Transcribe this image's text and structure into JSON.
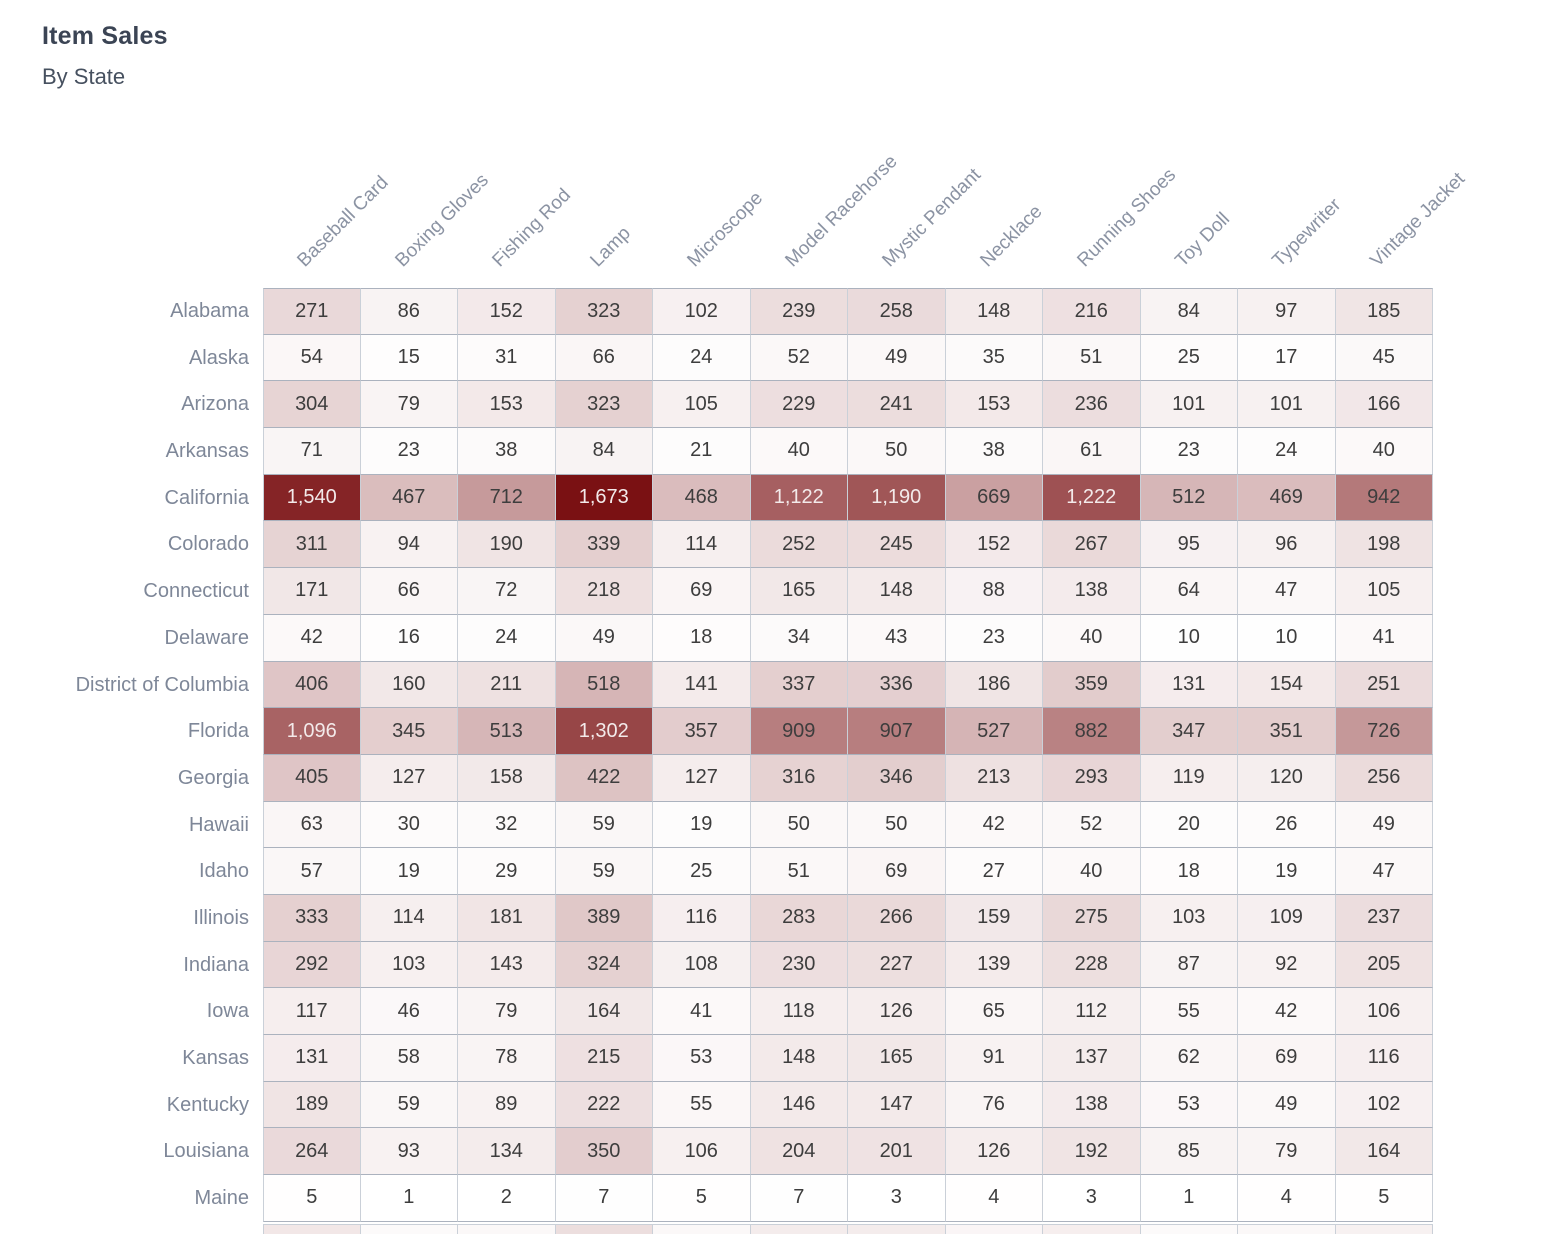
{
  "header": {
    "title": "Item Sales",
    "subtitle": "By State"
  },
  "chart_data": {
    "type": "heatmap",
    "title": "Item Sales",
    "subtitle": "By State",
    "columns": [
      "Baseball Card",
      "Boxing Gloves",
      "Fishing Rod",
      "Lamp",
      "Microscope",
      "Model Racehorse",
      "Mystic Pendant",
      "Necklace",
      "Running Shoes",
      "Toy Doll",
      "Typewriter",
      "Vintage Jacket"
    ],
    "rows": [
      {
        "state": "Alabama",
        "values": [
          271,
          86,
          152,
          323,
          102,
          239,
          258,
          148,
          216,
          84,
          97,
          185
        ]
      },
      {
        "state": "Alaska",
        "values": [
          54,
          15,
          31,
          66,
          24,
          52,
          49,
          35,
          51,
          25,
          17,
          45
        ]
      },
      {
        "state": "Arizona",
        "values": [
          304,
          79,
          153,
          323,
          105,
          229,
          241,
          153,
          236,
          101,
          101,
          166
        ]
      },
      {
        "state": "Arkansas",
        "values": [
          71,
          23,
          38,
          84,
          21,
          40,
          50,
          38,
          61,
          23,
          24,
          40
        ]
      },
      {
        "state": "California",
        "values": [
          1540,
          467,
          712,
          1673,
          468,
          1122,
          1190,
          669,
          1222,
          512,
          469,
          942
        ]
      },
      {
        "state": "Colorado",
        "values": [
          311,
          94,
          190,
          339,
          114,
          252,
          245,
          152,
          267,
          95,
          96,
          198
        ]
      },
      {
        "state": "Connecticut",
        "values": [
          171,
          66,
          72,
          218,
          69,
          165,
          148,
          88,
          138,
          64,
          47,
          105
        ]
      },
      {
        "state": "Delaware",
        "values": [
          42,
          16,
          24,
          49,
          18,
          34,
          43,
          23,
          40,
          10,
          10,
          41
        ]
      },
      {
        "state": "District of Columbia",
        "values": [
          406,
          160,
          211,
          518,
          141,
          337,
          336,
          186,
          359,
          131,
          154,
          251
        ]
      },
      {
        "state": "Florida",
        "values": [
          1096,
          345,
          513,
          1302,
          357,
          909,
          907,
          527,
          882,
          347,
          351,
          726
        ]
      },
      {
        "state": "Georgia",
        "values": [
          405,
          127,
          158,
          422,
          127,
          316,
          346,
          213,
          293,
          119,
          120,
          256
        ]
      },
      {
        "state": "Hawaii",
        "values": [
          63,
          30,
          32,
          59,
          19,
          50,
          50,
          42,
          52,
          20,
          26,
          49
        ]
      },
      {
        "state": "Idaho",
        "values": [
          57,
          19,
          29,
          59,
          25,
          51,
          69,
          27,
          40,
          18,
          19,
          47
        ]
      },
      {
        "state": "Illinois",
        "values": [
          333,
          114,
          181,
          389,
          116,
          283,
          266,
          159,
          275,
          103,
          109,
          237
        ]
      },
      {
        "state": "Indiana",
        "values": [
          292,
          103,
          143,
          324,
          108,
          230,
          227,
          139,
          228,
          87,
          92,
          205
        ]
      },
      {
        "state": "Iowa",
        "values": [
          117,
          46,
          79,
          164,
          41,
          118,
          126,
          65,
          112,
          55,
          42,
          106
        ]
      },
      {
        "state": "Kansas",
        "values": [
          131,
          58,
          78,
          215,
          53,
          148,
          165,
          91,
          137,
          62,
          69,
          116
        ]
      },
      {
        "state": "Kentucky",
        "values": [
          189,
          59,
          89,
          222,
          55,
          146,
          147,
          76,
          138,
          53,
          49,
          102
        ]
      },
      {
        "state": "Louisiana",
        "values": [
          264,
          93,
          134,
          350,
          106,
          204,
          201,
          126,
          192,
          85,
          79,
          164
        ]
      },
      {
        "state": "Maine",
        "values": [
          5,
          1,
          2,
          7,
          5,
          7,
          3,
          4,
          3,
          1,
          4,
          5
        ]
      }
    ],
    "next_row_peek_ratios": [
      0.1,
      0.02,
      0.03,
      0.14,
      0.03,
      0.08,
      0.08,
      0.04,
      0.07,
      0.02,
      0.03,
      0.06
    ],
    "color_scale": {
      "min_value": 0,
      "max_value": 1673,
      "min_color": "#ffffff",
      "max_color": "#7a1113",
      "dark_text_color": "#3d3d3d",
      "light_text_color": "#f3eaea"
    },
    "legend_position": "none",
    "grid": true
  }
}
